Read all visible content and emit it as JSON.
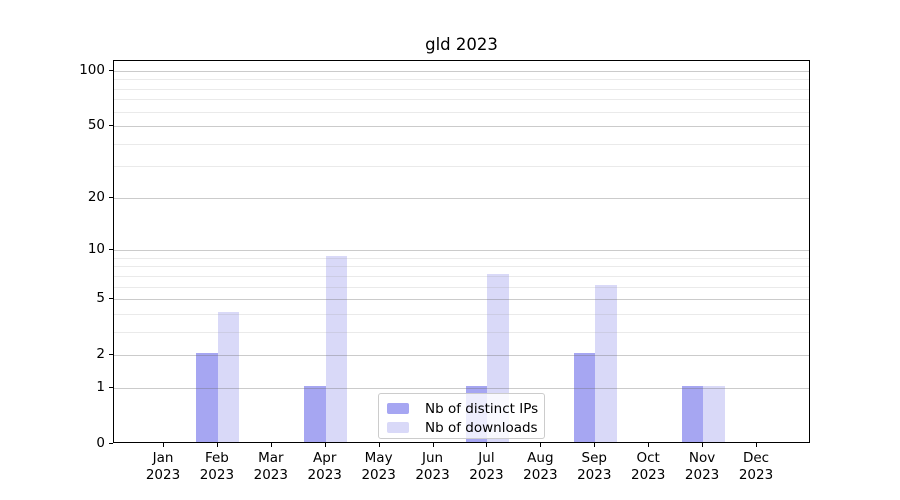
{
  "chart_data": {
    "type": "bar",
    "title": "gld 2023",
    "categories": [
      "Jan",
      "Feb",
      "Mar",
      "Apr",
      "May",
      "Jun",
      "Jul",
      "Aug",
      "Sep",
      "Oct",
      "Nov",
      "Dec"
    ],
    "category_year": "2023",
    "series": [
      {
        "name": "Nb of distinct IPs",
        "color": "#a6a6f2",
        "values": [
          0,
          2,
          0,
          1,
          0,
          0,
          1,
          0,
          2,
          0,
          1,
          0
        ]
      },
      {
        "name": "Nb of downloads",
        "color": "#d9d9f8",
        "values": [
          0,
          4,
          0,
          9,
          0,
          0,
          7,
          0,
          6,
          0,
          1,
          0
        ]
      }
    ],
    "yscale": "log1p",
    "ylim": [
      0,
      113
    ],
    "yticks": [
      0,
      1,
      2,
      5,
      10,
      20,
      50,
      100
    ],
    "minor_yticks": [
      3,
      4,
      6,
      7,
      8,
      9,
      30,
      40,
      60,
      70,
      80,
      90
    ],
    "grid": true,
    "legend_position": "lower center",
    "axis_color": "#000000",
    "major_grid_color": "#c6c6c6",
    "minor_grid_color": "#eaeaea"
  }
}
